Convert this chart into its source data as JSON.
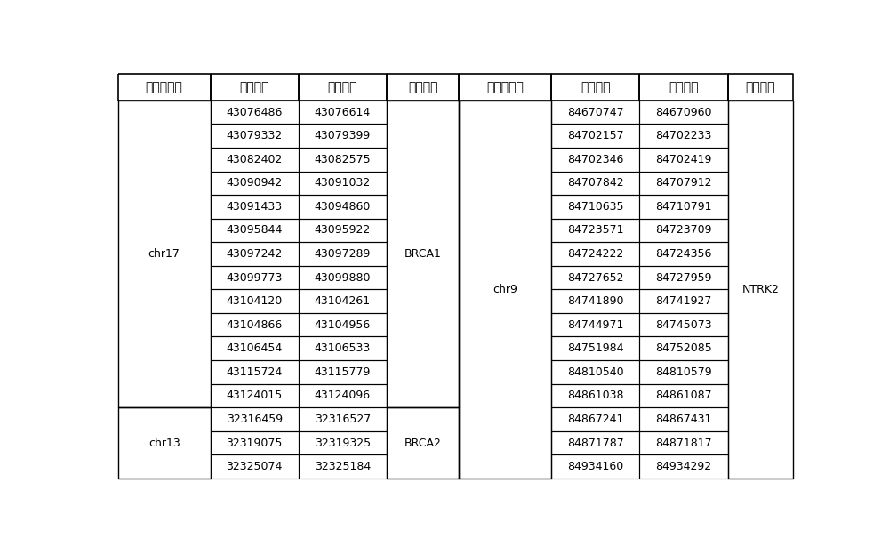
{
  "headers": [
    "染色体编号",
    "起始位置",
    "终止位置",
    "突变基因",
    "染色体编号",
    "起始位置",
    "终止位置",
    "突变基因"
  ],
  "left_groups": [
    {
      "chr": "chr17",
      "gene": "BRCA1",
      "rows": [
        [
          "43076486",
          "43076614"
        ],
        [
          "43079332",
          "43079399"
        ],
        [
          "43082402",
          "43082575"
        ],
        [
          "43090942",
          "43091032"
        ],
        [
          "43091433",
          "43094860"
        ],
        [
          "43095844",
          "43095922"
        ],
        [
          "43097242",
          "43097289"
        ],
        [
          "43099773",
          "43099880"
        ],
        [
          "43104120",
          "43104261"
        ],
        [
          "43104866",
          "43104956"
        ],
        [
          "43106454",
          "43106533"
        ],
        [
          "43115724",
          "43115779"
        ],
        [
          "43124015",
          "43124096"
        ]
      ]
    },
    {
      "chr": "chr13",
      "gene": "BRCA2",
      "rows": [
        [
          "32316459",
          "32316527"
        ],
        [
          "32319075",
          "32319325"
        ],
        [
          "32325074",
          "32325184"
        ]
      ]
    }
  ],
  "right_groups": [
    {
      "chr": "chr9",
      "gene": "NTRK2",
      "rows": [
        [
          "84670747",
          "84670960"
        ],
        [
          "84702157",
          "84702233"
        ],
        [
          "84702346",
          "84702419"
        ],
        [
          "84707842",
          "84707912"
        ],
        [
          "84710635",
          "84710791"
        ],
        [
          "84723571",
          "84723709"
        ],
        [
          "84724222",
          "84724356"
        ],
        [
          "84727652",
          "84727959"
        ],
        [
          "84741890",
          "84741927"
        ],
        [
          "84744971",
          "84745073"
        ],
        [
          "84751984",
          "84752085"
        ],
        [
          "84810540",
          "84810579"
        ],
        [
          "84861038",
          "84861087"
        ],
        [
          "84867241",
          "84867431"
        ],
        [
          "84871787",
          "84871817"
        ],
        [
          "84934160",
          "84934292"
        ]
      ]
    }
  ],
  "line_color": "#000000",
  "bg_color": "#ffffff",
  "text_color": "#000000",
  "figsize": [
    10.0,
    6.15
  ],
  "dpi": 100
}
